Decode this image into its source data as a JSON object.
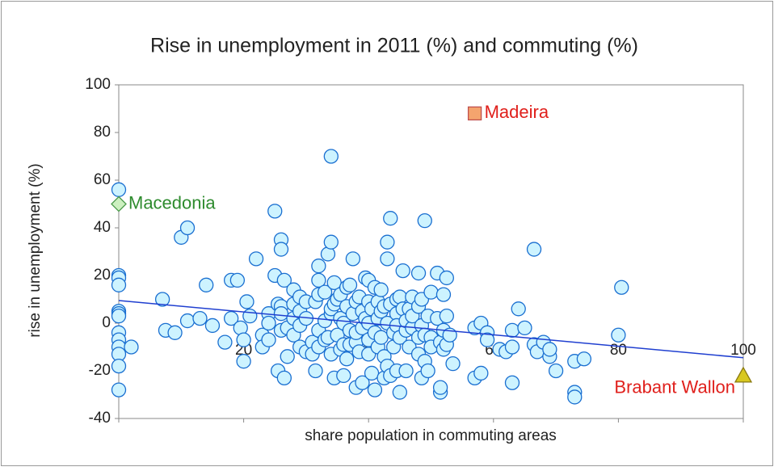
{
  "chart_data": {
    "type": "scatter",
    "title": "Rise in unemployment in 2011 (%) and commuting (%)",
    "x_label": "share population in commuting areas",
    "y_label": "rise in unemployment (%)",
    "xlim": [
      0,
      100
    ],
    "xticks": [
      0,
      20,
      40,
      60,
      80,
      100
    ],
    "ylim": [
      -40,
      100
    ],
    "yticks": [
      -40,
      -20,
      0,
      20,
      40,
      60,
      80,
      100
    ],
    "series": [
      {
        "marker": "circle",
        "color": "#cdf3ff",
        "edge": "#1a6fd1",
        "x": [
          0,
          0,
          0,
          0,
          0,
          0,
          0,
          0,
          0,
          0,
          0,
          0,
          0,
          2,
          7,
          7.5,
          9,
          10,
          11,
          11,
          13,
          14,
          15,
          17,
          18,
          18,
          19,
          19.5,
          20,
          20,
          20.5,
          21,
          22,
          23,
          23,
          24,
          24,
          24,
          25,
          25,
          25.5,
          25.5,
          26,
          26,
          26,
          26,
          26,
          26.5,
          26.5,
          27,
          27,
          28,
          28,
          28,
          28,
          29,
          29,
          29,
          29,
          30,
          30,
          30,
          31,
          31,
          31.5,
          31.5,
          32,
          32,
          32,
          32,
          32,
          33,
          33,
          33,
          33.5,
          33.5,
          34,
          34,
          34,
          34,
          34.5,
          34.5,
          34.5,
          34,
          35,
          35,
          35.5,
          35.5,
          35.5,
          36,
          36,
          36,
          36.5,
          36.5,
          36.5,
          37,
          37,
          37,
          37.5,
          37.5,
          38,
          38,
          38,
          38,
          38.5,
          38.5,
          39,
          39,
          39,
          39.5,
          39.5,
          40,
          40,
          40,
          40,
          40,
          40.5,
          40.5,
          41,
          41,
          41,
          41.5,
          41.5,
          41.5,
          42,
          42,
          42,
          42.5,
          42.5,
          42.5,
          43,
          43,
          43,
          43,
          43.5,
          43.5,
          43.5,
          44,
          44,
          44.5,
          44.5,
          44.5,
          44.5,
          45,
          45,
          45,
          45.5,
          45.5,
          46,
          46,
          46,
          46.5,
          46.5,
          47,
          47,
          47,
          48,
          48,
          48,
          48,
          48.5,
          48.5,
          48.5,
          49,
          49,
          49,
          49.5,
          49.5,
          50,
          50,
          50,
          51,
          51,
          51.5,
          51.5,
          51.5,
          52,
          52,
          52,
          52.5,
          52.5,
          52.5,
          53,
          53.5,
          57,
          57,
          58,
          58,
          59,
          59,
          61,
          62,
          64,
          63,
          63,
          63,
          65,
          66.5,
          66.5,
          67,
          68,
          69,
          69,
          70,
          73,
          73,
          73,
          74.5,
          80,
          80.5
        ],
        "values": [
          56,
          20,
          19,
          16,
          5,
          4,
          3,
          -4,
          -7,
          -10,
          -13,
          -18,
          -28,
          -10,
          10,
          -3,
          -4,
          36,
          40,
          1,
          2,
          16,
          -1,
          -8,
          18,
          2,
          18,
          -2,
          -16,
          -7,
          9,
          3,
          27,
          -5,
          -10,
          4,
          -7,
          0,
          20,
          47,
          -20,
          8,
          35,
          31,
          7,
          -3,
          4,
          -23,
          18,
          -14,
          -2,
          14,
          -5,
          2,
          8,
          11,
          -10,
          5,
          -1,
          -12,
          2,
          9,
          -8,
          -13,
          9,
          -20,
          18,
          24,
          12,
          -3,
          -10,
          1,
          -7,
          13,
          29,
          -6,
          34,
          4,
          -13,
          6,
          -23,
          17,
          8,
          70,
          -5,
          10,
          12,
          2,
          -11,
          -22,
          0,
          -9,
          15,
          7,
          -15,
          16,
          -3,
          -9,
          27,
          4,
          -8,
          9,
          -4,
          -27,
          -12,
          11,
          5,
          -25,
          -2,
          19,
          2,
          18,
          9,
          -7,
          -13,
          0,
          -21,
          6,
          -28,
          -4,
          15,
          9,
          2,
          -10,
          14,
          -6,
          5,
          -14,
          -23,
          7,
          27,
          34,
          0,
          -18,
          44,
          8,
          -22,
          -4,
          -10,
          10,
          4,
          -20,
          -1,
          -29,
          11,
          -6,
          22,
          6,
          -20,
          -3,
          1,
          -10,
          6,
          11,
          -2,
          3,
          21,
          7,
          -13,
          -6,
          10,
          -23,
          -1,
          43,
          -16,
          -5,
          3,
          -20,
          13,
          -6,
          -10,
          21,
          2,
          -29,
          -27,
          -8,
          12,
          -3,
          -11,
          19,
          3,
          -9,
          -5,
          -17,
          -23,
          -2,
          -21,
          0,
          -4,
          -7,
          -11,
          -12,
          6,
          -25,
          -10,
          -3,
          -2,
          31,
          -9,
          -12,
          -8,
          -14,
          -11,
          -20,
          -29,
          -31,
          -16,
          -15,
          -5,
          15
        ]
      },
      {
        "label": "Madeira",
        "marker": "square",
        "color": "#f4a46e",
        "edge": "#c0504d",
        "label_color": "#e0201c",
        "x": [
          57
        ],
        "values": [
          88
        ]
      },
      {
        "label": "Macedonia",
        "marker": "diamond",
        "color": "#ccf0c0",
        "edge": "#4a9a4a",
        "label_color": "#2e8b2e",
        "x": [
          0
        ],
        "values": [
          50
        ]
      },
      {
        "label": "Brabant Wallon",
        "marker": "triangle",
        "color": "#d8c820",
        "edge": "#8a7a10",
        "label_color": "#e0201c",
        "x": [
          100
        ],
        "values": [
          -22
        ]
      }
    ],
    "trendline": {
      "color": "#1f3fd0",
      "x": [
        0,
        100
      ],
      "values": [
        9.5,
        -14.5
      ]
    }
  }
}
